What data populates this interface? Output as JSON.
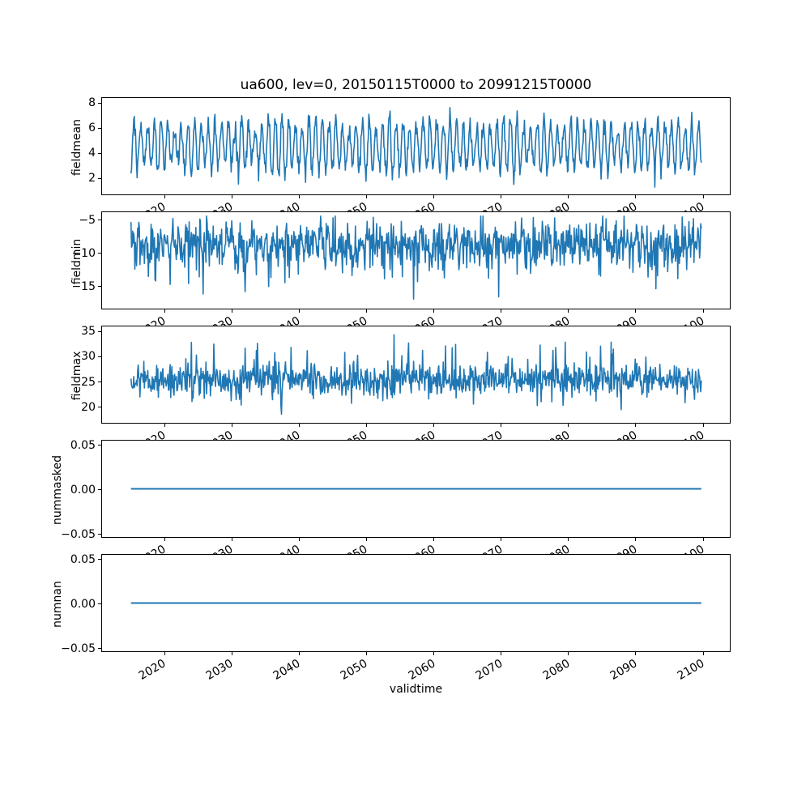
{
  "title": "ua600, lev=0, 20150115T0000 to 20991215T0000",
  "xlabel": "validtime",
  "line_color": "#1f77b4",
  "chart_data": {
    "type": "line",
    "title": "ua600, lev=0, 20150115T0000 to 20991215T0000",
    "xlabel": "validtime",
    "legend": "none",
    "grid": false,
    "x_axis": {
      "start": 2015.0417,
      "end": 2099.9583,
      "samples_per_year": 12,
      "n_points": 1020,
      "xlim": [
        2010.8,
        2104.2
      ],
      "tick_values": [
        2020,
        2030,
        2040,
        2050,
        2060,
        2070,
        2080,
        2090,
        2100
      ],
      "tick_labels": [
        "2020",
        "2030",
        "2040",
        "2050",
        "2060",
        "2070",
        "2080",
        "2090",
        "2100"
      ],
      "tick_label_rotation_deg": 30
    },
    "panels": [
      {
        "name": "fieldmean",
        "ylabel": "fieldmean",
        "ylim": [
          0.6,
          8.4
        ],
        "ytick_values": [
          2,
          4,
          6,
          8
        ],
        "ytick_labels": [
          "2",
          "4",
          "6",
          "8"
        ],
        "series": {
          "kind": "seasonal",
          "seed": 101,
          "base": 4.55,
          "season_amplitude": 1.9,
          "amplitude_jitter": 0.35,
          "phase": 0.29,
          "noise_sd": 0.42,
          "clamp": [
            1.0,
            8.1
          ],
          "approx_range": [
            1.0,
            8.1
          ]
        }
      },
      {
        "name": "fieldmin",
        "ylabel": "fieldmin",
        "ylim": [
          -18.6,
          -3.8
        ],
        "ytick_values": [
          -5,
          -10,
          -15
        ],
        "ytick_labels": [
          "−5",
          "−10",
          "−15"
        ],
        "series": {
          "kind": "noisy",
          "seed": 202,
          "base": -8.6,
          "season_amplitude": 0.9,
          "phase": 0.0,
          "noise_sd": 1.55,
          "spike_down_p": 0.1,
          "spike_down": [
            1.5,
            5.5
          ],
          "spike_up_p": 0.0,
          "spike_up": [
            0,
            0
          ],
          "clamp": [
            -17.8,
            -4.4
          ],
          "approx_range": [
            -17.8,
            -4.4
          ]
        }
      },
      {
        "name": "fieldmax",
        "ylabel": "fieldmax",
        "ylim": [
          16.6,
          36.0
        ],
        "ytick_values": [
          20,
          25,
          30,
          35
        ],
        "ytick_labels": [
          "20",
          "25",
          "30",
          "35"
        ],
        "series": {
          "kind": "noisy",
          "seed": 303,
          "base": 25.3,
          "season_amplitude": 0.0,
          "phase": 0.0,
          "noise_sd": 1.6,
          "spike_up_p": 0.06,
          "spike_up": [
            1.5,
            6.5
          ],
          "spike_down_p": 0.05,
          "spike_down": [
            1.2,
            4.0
          ],
          "clamp": [
            17.9,
            35.0
          ],
          "approx_range": [
            17.9,
            35.0
          ]
        }
      },
      {
        "name": "nummasked",
        "ylabel": "nummasked",
        "ylim": [
          -0.055,
          0.055
        ],
        "ytick_values": [
          0.05,
          0.0,
          -0.05
        ],
        "ytick_labels": [
          "0.05",
          "0.00",
          "−0.05"
        ],
        "series": {
          "kind": "constant",
          "value": 0.0,
          "approx_range": [
            0.0,
            0.0
          ]
        }
      },
      {
        "name": "numnan",
        "ylabel": "numnan",
        "ylim": [
          -0.055,
          0.055
        ],
        "ytick_values": [
          0.05,
          0.0,
          -0.05
        ],
        "ytick_labels": [
          "0.05",
          "0.00",
          "−0.05"
        ],
        "series": {
          "kind": "constant",
          "value": 0.0,
          "approx_range": [
            0.0,
            0.0
          ]
        }
      }
    ]
  }
}
